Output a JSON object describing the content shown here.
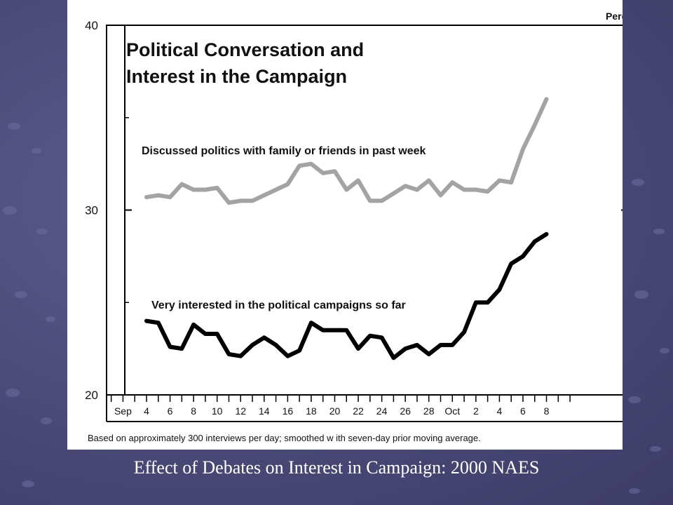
{
  "slide": {
    "caption": "Effect of Debates on Interest in Campaign: 2000 NAES",
    "colors": {
      "background": "#4a4977",
      "figure": "#ffffff"
    }
  },
  "chart_data": {
    "type": "line",
    "title_lines": [
      "Political Conversation and",
      "Interest in the Campaign"
    ],
    "unit_label": "Percent",
    "footnote": "Based on approximately 300 interviews per day; smoothed w ith seven-day prior moving average.",
    "ylim": [
      20,
      40
    ],
    "yticks": [
      20,
      30,
      40
    ],
    "x_tick_labels": [
      "Sep",
      "4",
      "6",
      "8",
      "10",
      "12",
      "14",
      "16",
      "18",
      "20",
      "22",
      "24",
      "26",
      "28",
      "Oct",
      "2",
      "4",
      "6",
      "8"
    ],
    "grid": false,
    "series": [
      {
        "label": "Discussed politics with family or friends in past week",
        "color": "#a3a3a3",
        "x": [
          "2000-09-04",
          "2000-09-05",
          "2000-09-06",
          "2000-09-07",
          "2000-09-08",
          "2000-09-09",
          "2000-09-10",
          "2000-09-11",
          "2000-09-12",
          "2000-09-13",
          "2000-09-14",
          "2000-09-15",
          "2000-09-16",
          "2000-09-17",
          "2000-09-18",
          "2000-09-19",
          "2000-09-20",
          "2000-09-21",
          "2000-09-22",
          "2000-09-23",
          "2000-09-24",
          "2000-09-25",
          "2000-09-26",
          "2000-09-27",
          "2000-09-28",
          "2000-09-29",
          "2000-09-30",
          "2000-10-01",
          "2000-10-02",
          "2000-10-03",
          "2000-10-04",
          "2000-10-05",
          "2000-10-06",
          "2000-10-07",
          "2000-10-08"
        ],
        "values": [
          30.7,
          30.8,
          30.7,
          31.4,
          31.1,
          31.1,
          31.2,
          30.4,
          30.5,
          30.5,
          30.8,
          31.1,
          31.4,
          32.4,
          32.5,
          32.0,
          32.1,
          31.1,
          31.6,
          30.5,
          30.5,
          30.9,
          31.3,
          31.1,
          31.6,
          30.8,
          31.5,
          31.1,
          31.1,
          31.0,
          31.6,
          31.5,
          33.3,
          34.6,
          36.0
        ]
      },
      {
        "label": "Very interested in the political campaigns so far",
        "color": "#000000",
        "x": [
          "2000-09-04",
          "2000-09-05",
          "2000-09-06",
          "2000-09-07",
          "2000-09-08",
          "2000-09-09",
          "2000-09-10",
          "2000-09-11",
          "2000-09-12",
          "2000-09-13",
          "2000-09-14",
          "2000-09-15",
          "2000-09-16",
          "2000-09-17",
          "2000-09-18",
          "2000-09-19",
          "2000-09-20",
          "2000-09-21",
          "2000-09-22",
          "2000-09-23",
          "2000-09-24",
          "2000-09-25",
          "2000-09-26",
          "2000-09-27",
          "2000-09-28",
          "2000-09-29",
          "2000-09-30",
          "2000-10-01",
          "2000-10-02",
          "2000-10-03",
          "2000-10-04",
          "2000-10-05",
          "2000-10-06",
          "2000-10-07",
          "2000-10-08"
        ],
        "values": [
          24.0,
          23.9,
          22.6,
          22.5,
          23.8,
          23.3,
          23.3,
          22.2,
          22.1,
          22.7,
          23.1,
          22.7,
          22.1,
          22.4,
          23.9,
          23.5,
          23.5,
          23.5,
          22.5,
          23.2,
          23.1,
          22.0,
          22.5,
          22.7,
          22.2,
          22.7,
          22.7,
          23.4,
          25.0,
          25.0,
          25.7,
          27.1,
          27.5,
          28.3,
          28.7
        ]
      }
    ]
  }
}
